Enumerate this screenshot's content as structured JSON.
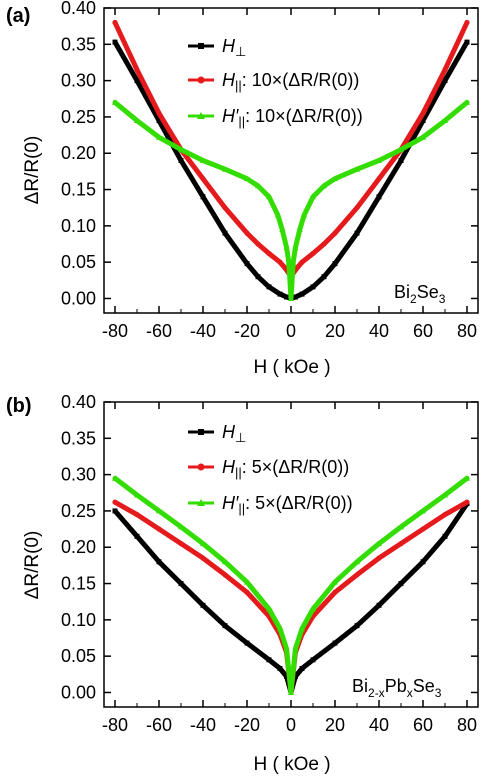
{
  "colors": {
    "H_perp": "#000000",
    "H_par": "#e41a1c",
    "H_par_prime": "#33dd00"
  },
  "chart_data": [
    {
      "panel": "(a)",
      "type": "line",
      "xlabel": "H ( kOe )",
      "ylabel": "ΔR/R(0)",
      "xlim": [
        -85,
        85
      ],
      "ylim": [
        -0.02,
        0.4
      ],
      "xticks": [
        -80,
        -60,
        -40,
        -20,
        0,
        20,
        40,
        60,
        80
      ],
      "yticks": [
        0.0,
        0.05,
        0.1,
        0.15,
        0.2,
        0.25,
        0.3,
        0.35,
        0.4
      ],
      "xtick_labels": [
        "-80",
        "-60",
        "-40",
        "-20",
        "0",
        "20",
        "40",
        "60",
        "80"
      ],
      "ytick_labels": [
        "0.00",
        "0.05",
        "0.10",
        "0.15",
        "0.20",
        "0.25",
        "0.30",
        "0.35",
        "0.40"
      ],
      "annotation": {
        "base": "Bi",
        "sub1": "2",
        "mid": "Se",
        "sub2": "3"
      },
      "legend": [
        {
          "symbol": "H",
          "subscript": "⊥",
          "prime": "",
          "text": ""
        },
        {
          "symbol": "H",
          "subscript": "||",
          "prime": "",
          "text": ": 10×(ΔR/R(0))"
        },
        {
          "symbol": "H",
          "subscript": "||",
          "prime": "′",
          "text": ": 10×(ΔR/R(0))"
        }
      ],
      "series": [
        {
          "key": "H_perp",
          "x": [
            -80,
            -70,
            -60,
            -50,
            -40,
            -30,
            -20,
            -15,
            -10,
            -5,
            -2,
            0,
            2,
            5,
            10,
            15,
            20,
            30,
            40,
            50,
            60,
            70,
            80
          ],
          "y": [
            0.353,
            0.3,
            0.245,
            0.19,
            0.14,
            0.09,
            0.048,
            0.03,
            0.016,
            0.006,
            0.002,
            0.0,
            0.002,
            0.006,
            0.016,
            0.03,
            0.048,
            0.09,
            0.14,
            0.19,
            0.245,
            0.3,
            0.353
          ]
        },
        {
          "key": "H_par",
          "x": [
            -80,
            -70,
            -60,
            -50,
            -40,
            -30,
            -20,
            -15,
            -10,
            -5,
            -3,
            -1,
            0,
            1,
            3,
            5,
            10,
            15,
            20,
            30,
            40,
            50,
            60,
            70,
            80
          ],
          "y": [
            0.38,
            0.315,
            0.255,
            0.205,
            0.165,
            0.125,
            0.09,
            0.075,
            0.062,
            0.05,
            0.043,
            0.035,
            0.03,
            0.035,
            0.043,
            0.05,
            0.062,
            0.075,
            0.09,
            0.125,
            0.165,
            0.205,
            0.255,
            0.315,
            0.38
          ]
        },
        {
          "key": "H_par_prime",
          "x": [
            -80,
            -70,
            -60,
            -50,
            -40,
            -30,
            -20,
            -15,
            -10,
            -6,
            -4,
            -2,
            -1,
            0,
            1,
            2,
            4,
            6,
            10,
            15,
            20,
            30,
            40,
            50,
            60,
            70,
            80
          ],
          "y": [
            0.27,
            0.245,
            0.222,
            0.205,
            0.19,
            0.178,
            0.165,
            0.155,
            0.14,
            0.115,
            0.095,
            0.07,
            0.05,
            0.0,
            0.05,
            0.07,
            0.095,
            0.115,
            0.14,
            0.155,
            0.165,
            0.178,
            0.19,
            0.205,
            0.222,
            0.245,
            0.27
          ]
        }
      ]
    },
    {
      "panel": "(b)",
      "type": "line",
      "xlabel": "H ( kOe )",
      "ylabel": "ΔR/R(0)",
      "xlim": [
        -85,
        85
      ],
      "ylim": [
        -0.02,
        0.4
      ],
      "xticks": [
        -80,
        -60,
        -40,
        -20,
        0,
        20,
        40,
        60,
        80
      ],
      "yticks": [
        0.0,
        0.05,
        0.1,
        0.15,
        0.2,
        0.25,
        0.3,
        0.35,
        0.4
      ],
      "xtick_labels": [
        "-80",
        "-60",
        "-40",
        "-20",
        "0",
        "20",
        "40",
        "60",
        "80"
      ],
      "ytick_labels": [
        "0.00",
        "0.05",
        "0.10",
        "0.15",
        "0.20",
        "0.25",
        "0.30",
        "0.35",
        "0.40"
      ],
      "annotation": {
        "base": "Bi",
        "sub1": "2-x",
        "mid": "Pb",
        "sub2": "x",
        "tail": "Se",
        "sub3": "3"
      },
      "legend": [
        {
          "symbol": "H",
          "subscript": "⊥",
          "prime": "",
          "text": ""
        },
        {
          "symbol": "H",
          "subscript": "||",
          "prime": "",
          "text": ": 5×(ΔR/R(0))"
        },
        {
          "symbol": "H",
          "subscript": "||",
          "prime": "′",
          "text": ": 5×(ΔR/R(0))"
        }
      ],
      "series": [
        {
          "key": "H_perp",
          "x": [
            -80,
            -70,
            -60,
            -50,
            -40,
            -30,
            -20,
            -10,
            -5,
            -2,
            0,
            2,
            5,
            10,
            20,
            30,
            40,
            50,
            60,
            70,
            80
          ],
          "y": [
            0.25,
            0.215,
            0.18,
            0.15,
            0.12,
            0.092,
            0.068,
            0.045,
            0.033,
            0.022,
            0.0,
            0.022,
            0.033,
            0.045,
            0.068,
            0.092,
            0.12,
            0.15,
            0.18,
            0.215,
            0.26
          ]
        },
        {
          "key": "H_par",
          "x": [
            -80,
            -70,
            -60,
            -50,
            -40,
            -30,
            -20,
            -10,
            -5,
            -2,
            0,
            2,
            5,
            10,
            20,
            30,
            40,
            50,
            60,
            70,
            80
          ],
          "y": [
            0.262,
            0.245,
            0.225,
            0.205,
            0.185,
            0.162,
            0.138,
            0.105,
            0.08,
            0.055,
            0.0,
            0.055,
            0.08,
            0.105,
            0.138,
            0.162,
            0.185,
            0.205,
            0.225,
            0.245,
            0.262
          ]
        },
        {
          "key": "H_par_prime",
          "x": [
            -80,
            -70,
            -60,
            -50,
            -40,
            -30,
            -20,
            -10,
            -5,
            -2,
            0,
            2,
            5,
            10,
            20,
            30,
            40,
            50,
            60,
            70,
            80
          ],
          "y": [
            0.295,
            0.272,
            0.25,
            0.228,
            0.205,
            0.18,
            0.152,
            0.115,
            0.088,
            0.06,
            0.0,
            0.06,
            0.088,
            0.115,
            0.152,
            0.18,
            0.205,
            0.228,
            0.25,
            0.272,
            0.295
          ]
        }
      ]
    }
  ]
}
